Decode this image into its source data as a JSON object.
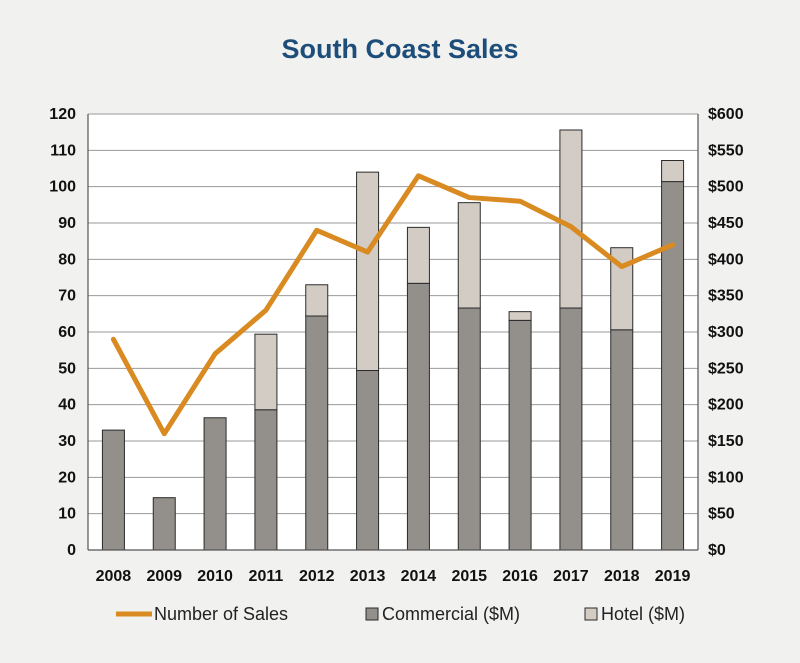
{
  "chart_data": {
    "type": "bar",
    "title": "South Coast Sales",
    "categories": [
      "2008",
      "2009",
      "2010",
      "2011",
      "2012",
      "2013",
      "2014",
      "2015",
      "2016",
      "2017",
      "2018",
      "2019"
    ],
    "series": [
      {
        "name": "Commercial ($M)",
        "axis": "right",
        "stacked": true,
        "color": "#938f8a",
        "values": [
          165,
          72,
          182,
          193,
          322,
          247,
          367,
          333,
          316,
          333,
          303,
          507
        ]
      },
      {
        "name": "Hotel ($M)",
        "axis": "right",
        "stacked": true,
        "color": "#d3ccc5",
        "values": [
          0,
          0,
          0,
          104,
          43,
          273,
          77,
          145,
          12,
          245,
          113,
          29
        ]
      },
      {
        "name": "Number of Sales",
        "axis": "left",
        "type": "line",
        "color": "#d98a20",
        "values": [
          58,
          32,
          54,
          66,
          88,
          82,
          103,
          97,
          96,
          89,
          78,
          84
        ]
      }
    ],
    "y_left": {
      "ylim": [
        0,
        120
      ],
      "ticks": [
        0,
        10,
        20,
        30,
        40,
        50,
        60,
        70,
        80,
        90,
        100,
        110,
        120
      ],
      "tick_labels": [
        "0",
        "10",
        "20",
        "30",
        "40",
        "50",
        "60",
        "70",
        "80",
        "90",
        "100",
        "110",
        "120"
      ]
    },
    "y_right": {
      "ylim": [
        0,
        600
      ],
      "ticks": [
        0,
        50,
        100,
        150,
        200,
        250,
        300,
        350,
        400,
        450,
        500,
        550,
        600
      ],
      "tick_labels": [
        "$0",
        "$50",
        "$100",
        "$150",
        "$200",
        "$250",
        "$300",
        "$350",
        "$400",
        "$450",
        "$500",
        "$550",
        "$600"
      ]
    },
    "grid": true,
    "legend_position": "bottom",
    "legend": [
      {
        "label": "Number of Sales",
        "marker": "line",
        "color": "#d98a20"
      },
      {
        "label": "Commercial ($M)",
        "marker": "square",
        "color": "#938f8a"
      },
      {
        "label": "Hotel ($M)",
        "marker": "square",
        "color": "#d3ccc5"
      }
    ]
  }
}
